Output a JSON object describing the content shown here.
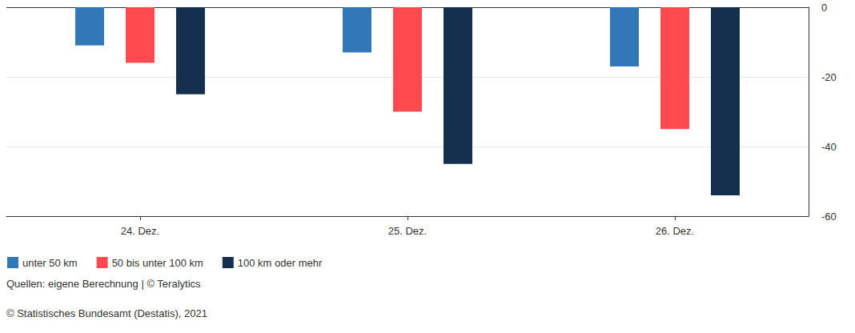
{
  "chart_data": {
    "type": "bar",
    "categories": [
      "24. Dez.",
      "25. Dez.",
      "26. Dez."
    ],
    "series": [
      {
        "name": "unter 50 km",
        "color": "#3277b8",
        "values": [
          -11,
          -13,
          -17
        ]
      },
      {
        "name": "50 bis unter 100 km",
        "color": "#ff4b50",
        "values": [
          -16,
          -30,
          -35
        ]
      },
      {
        "name": "100 km oder mehr",
        "color": "#15304f",
        "values": [
          -25,
          -45,
          -54
        ]
      }
    ],
    "ylim": [
      -60,
      0
    ],
    "yticks": [
      0,
      -20,
      -40,
      -60
    ],
    "grid": true,
    "legend": "bottom-left",
    "annotations": [
      "Quellen: eigene Berechnung | © Teralytics",
      "© Statistisches Bundesamt (Destatis), 2021"
    ]
  }
}
